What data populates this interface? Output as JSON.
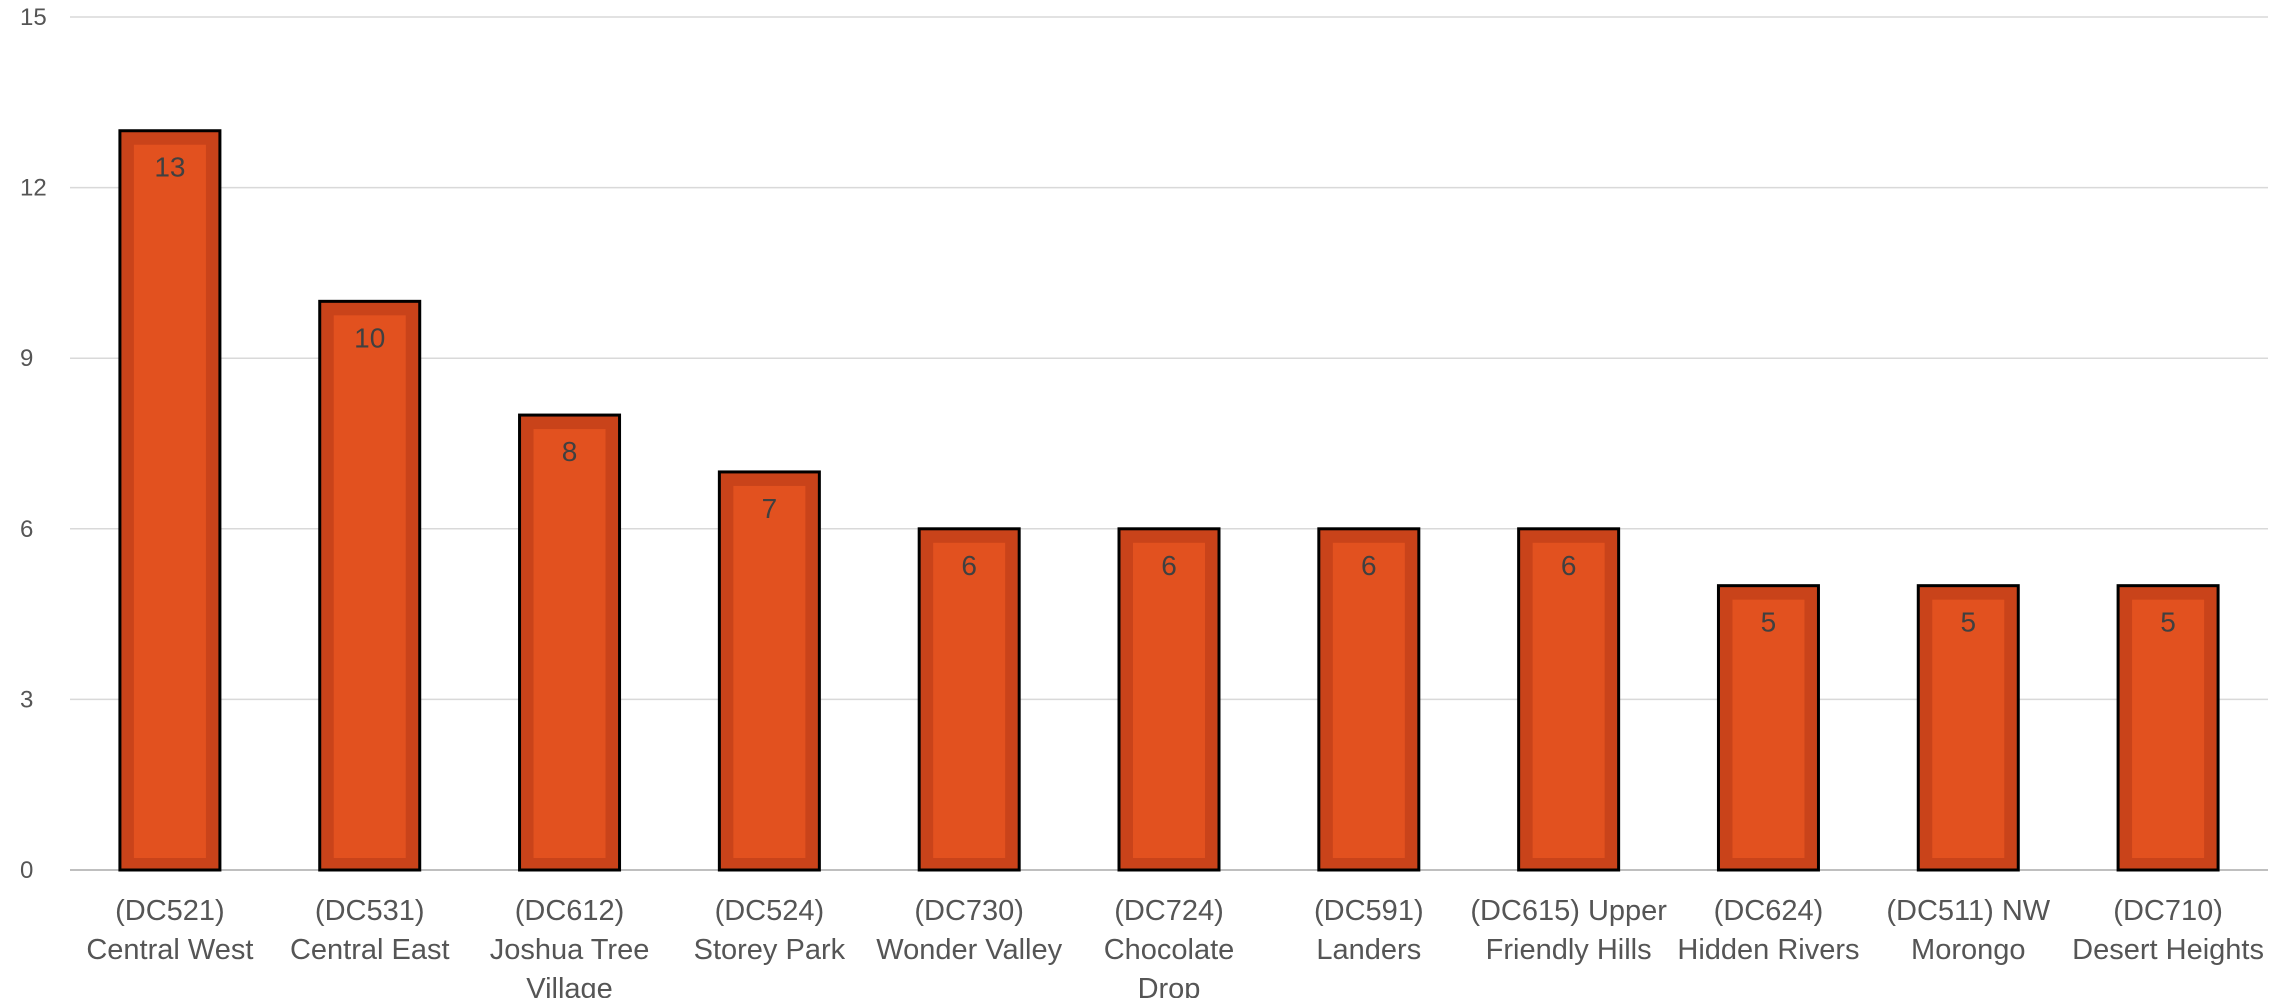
{
  "chart_data": {
    "type": "bar",
    "title": "",
    "xlabel": "",
    "ylabel": "",
    "ylim": [
      0,
      15
    ],
    "yticks": [
      0,
      3,
      6,
      9,
      12,
      15
    ],
    "grid": true,
    "legend": "none",
    "bar_color": "#e2511f",
    "bar_edge_color": "#000000",
    "categories": [
      "(DC521) Central West",
      "(DC531) Central East",
      "(DC612) Joshua Tree Village",
      "(DC524) Storey Park",
      "(DC730) Wonder Valley",
      "(DC724) Chocolate Drop",
      "(DC591) Landers",
      "(DC615) Upper Friendly Hills",
      "(DC624) Hidden Rivers",
      "(DC511) NW Morongo",
      "(DC710) Desert Heights"
    ],
    "category_lines": [
      [
        "(DC521)",
        "Central West"
      ],
      [
        "(DC531)",
        "Central East"
      ],
      [
        "(DC612)",
        "Joshua Tree",
        "Village"
      ],
      [
        "(DC524)",
        "Storey Park"
      ],
      [
        "(DC730)",
        "Wonder Valley"
      ],
      [
        "(DC724)",
        "Chocolate",
        "Drop"
      ],
      [
        "(DC591)",
        "Landers"
      ],
      [
        "(DC615) Upper",
        "Friendly Hills"
      ],
      [
        "(DC624)",
        "Hidden Rivers"
      ],
      [
        "(DC511) NW",
        "Morongo"
      ],
      [
        "(DC710)",
        "Desert Heights"
      ]
    ],
    "values": [
      13,
      10,
      8,
      7,
      6,
      6,
      6,
      6,
      5,
      5,
      5
    ]
  }
}
